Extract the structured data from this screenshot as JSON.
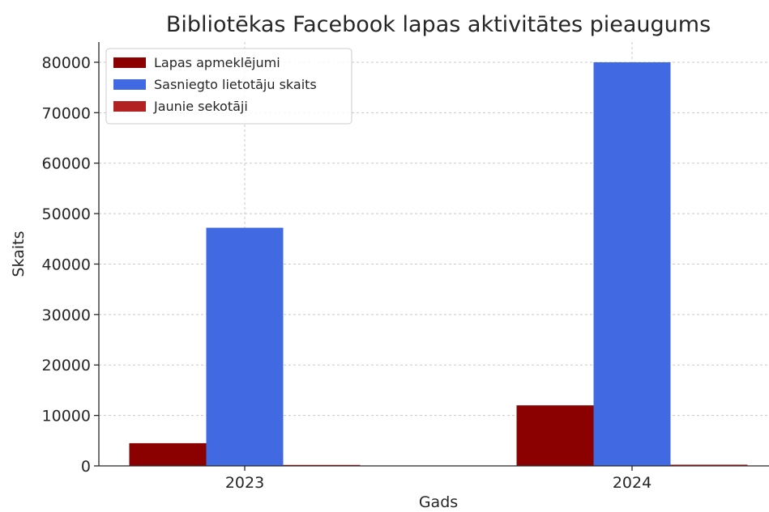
{
  "chart_data": {
    "type": "bar",
    "title": "Bibliotēkas Facebook lapas aktivitātes pieaugums",
    "xlabel": "Gads",
    "ylabel": "Skaits",
    "categories": [
      "2023",
      "2024"
    ],
    "series": [
      {
        "name": "Lapas apmeklējumi",
        "values": [
          4500,
          12000
        ],
        "color": "#8b0000"
      },
      {
        "name": "Sasniegto lietotāju skaits",
        "values": [
          47200,
          80000
        ],
        "color": "#4169e1"
      },
      {
        "name": "Jaunie sekotāji",
        "values": [
          200,
          250
        ],
        "color": "#b22222"
      }
    ],
    "ylim": [
      0,
      84000
    ],
    "yticks": [
      0,
      10000,
      20000,
      30000,
      40000,
      50000,
      60000,
      70000,
      80000
    ],
    "grid": true,
    "legend_position": "top-left"
  }
}
